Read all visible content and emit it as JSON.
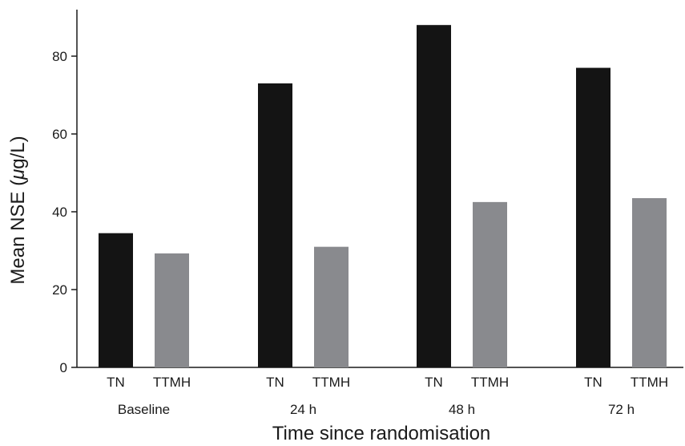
{
  "chart_data": {
    "type": "bar",
    "title": "",
    "xlabel": "Time since randomisation",
    "ylabel_prefix": "Mean NSE (",
    "ylabel_mu": "μ",
    "ylabel_suffix": "g/L)",
    "ylim": [
      0,
      90
    ],
    "yticks": [
      0,
      20,
      40,
      60,
      80
    ],
    "grid": false,
    "groups": [
      "Baseline",
      "24 h",
      "48 h",
      "72 h"
    ],
    "bar_labels": [
      "TN",
      "TTMH"
    ],
    "series": [
      {
        "name": "TN",
        "color": "#141414",
        "values": [
          34.5,
          73,
          88,
          77
        ]
      },
      {
        "name": "TTMH",
        "color": "#898a8e",
        "values": [
          29.3,
          31,
          42.5,
          43.5
        ]
      }
    ]
  }
}
